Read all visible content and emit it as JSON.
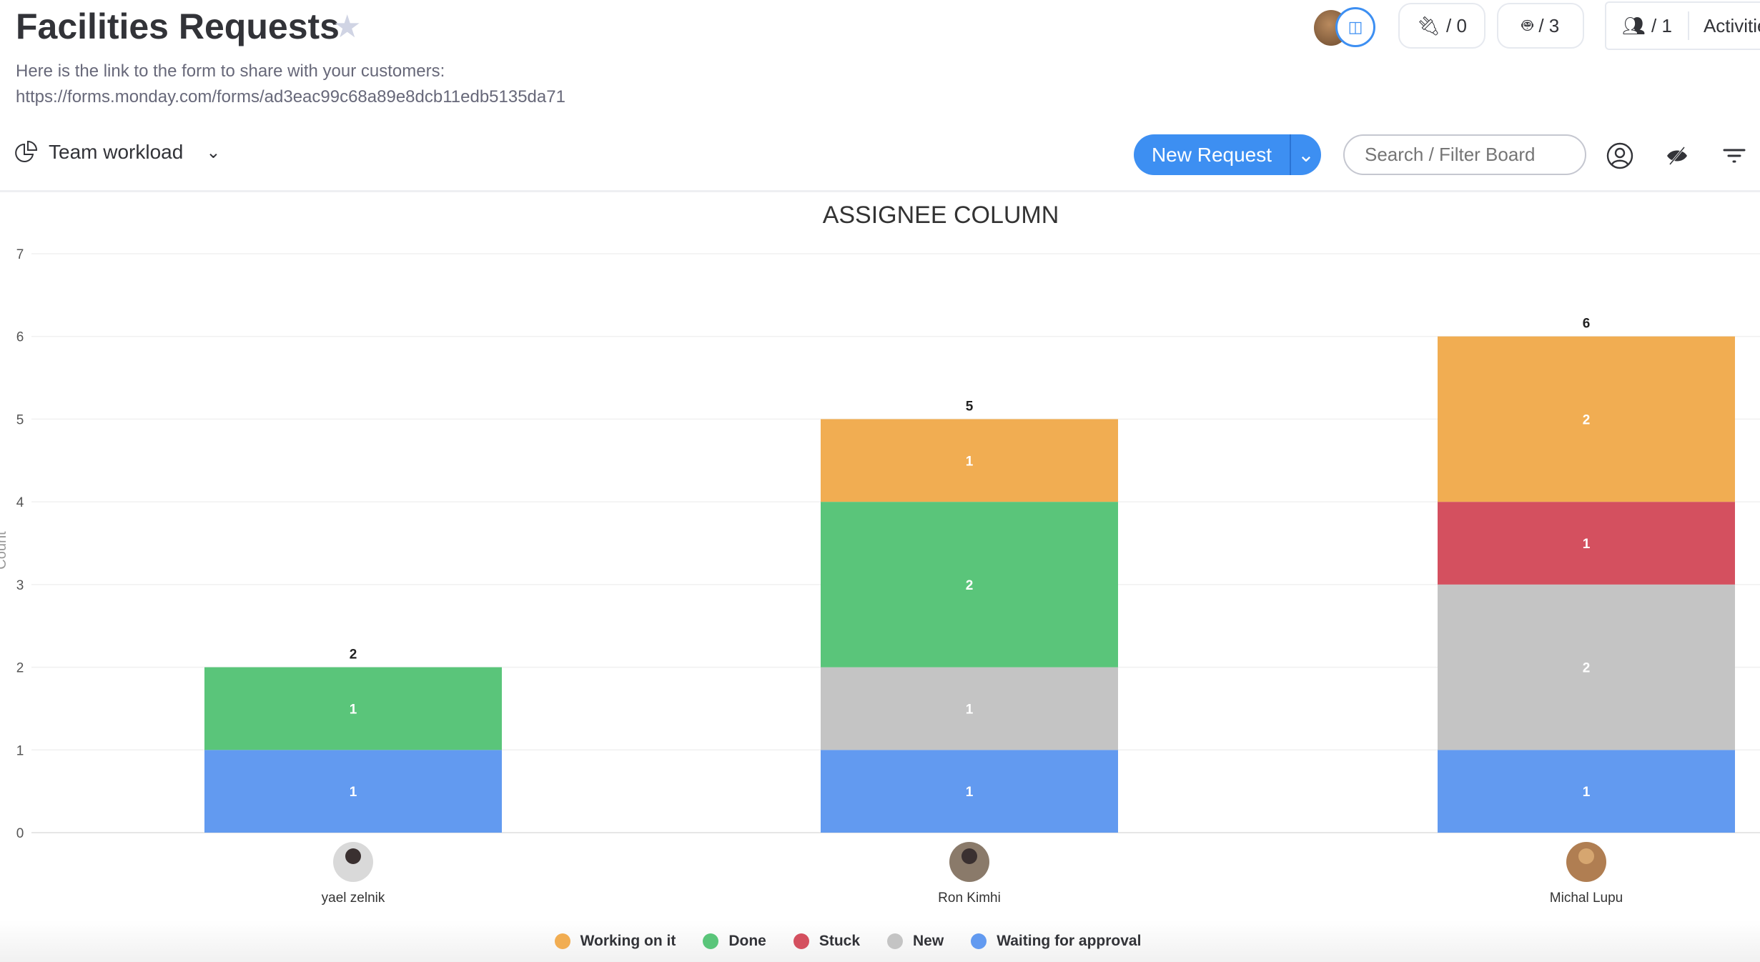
{
  "header": {
    "title": "Facilities Requests",
    "description": "Here is the link to the form to share with your customers:",
    "link": "https://forms.monday.com/forms/ad3eac99c68a89e8dcb11edb5135da71",
    "integrations_count": "/ 0",
    "automations_count": "/ 3",
    "members_count": "/ 1",
    "activity_label": "Activitie"
  },
  "toolbar": {
    "view_name": "Team workload",
    "new_button": "New Request",
    "search_placeholder": "Search / Filter Board"
  },
  "chart_data": {
    "type": "bar",
    "stacked": true,
    "title": "ASSIGNEE COLUMN",
    "ylabel": "Count",
    "ylim": [
      0,
      7
    ],
    "yticks": [
      "0",
      "1",
      "2",
      "3",
      "4",
      "5",
      "6",
      "7"
    ],
    "grid": true,
    "legend_position": "bottom",
    "categories": [
      "yael zelnik",
      "Ron Kimhi",
      "Michal Lupu"
    ],
    "totals": [
      "2",
      "5",
      "6"
    ],
    "series": [
      {
        "name": "Waiting for approval",
        "color": "#629af0",
        "values": [
          1,
          1,
          1
        ]
      },
      {
        "name": "New",
        "color": "#c4c4c4",
        "values": [
          0,
          1,
          2
        ]
      },
      {
        "name": "Stuck",
        "color": "#d4505f",
        "values": [
          0,
          0,
          1
        ]
      },
      {
        "name": "Done",
        "color": "#5ac57a",
        "values": [
          1,
          2,
          0
        ]
      },
      {
        "name": "Working on it",
        "color": "#f1ad52",
        "values": [
          0,
          1,
          2
        ]
      }
    ],
    "legend_order": [
      "Working on it",
      "Done",
      "Stuck",
      "New",
      "Waiting for approval"
    ]
  }
}
